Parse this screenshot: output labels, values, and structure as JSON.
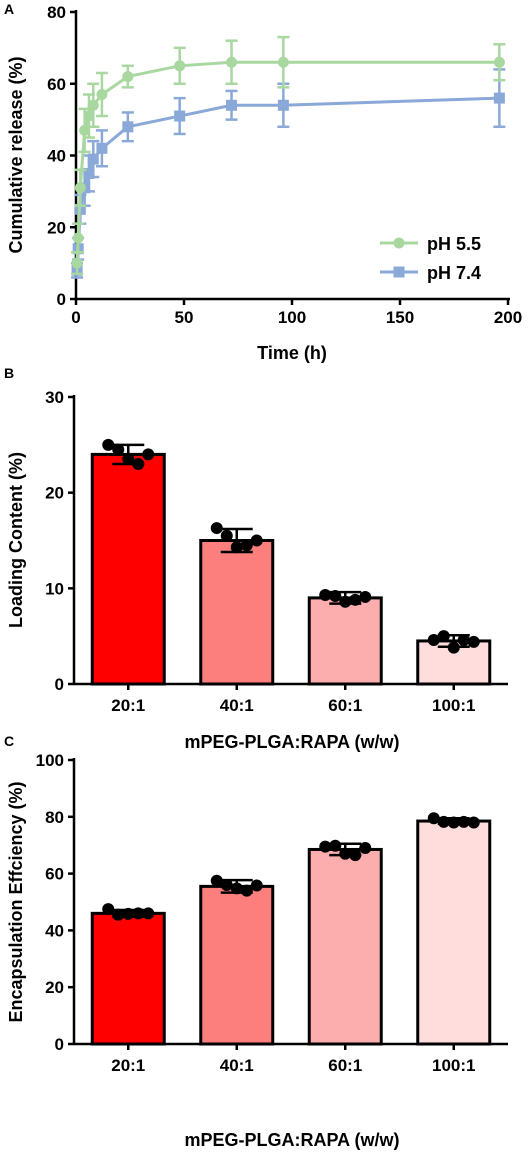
{
  "panels": {
    "a": {
      "letter": "A"
    },
    "b": {
      "letter": "B"
    },
    "c": {
      "letter": "C"
    }
  },
  "chart_data": [
    {
      "type": "line",
      "xlabel": "Time (h)",
      "ylabel": "Cumulative release (%)",
      "xlim": [
        0,
        200
      ],
      "ylim": [
        0,
        80
      ],
      "xticks": [
        "0",
        "50",
        "100",
        "150",
        "200"
      ],
      "yticks": [
        "0",
        "20",
        "40",
        "60",
        "80"
      ],
      "legend_position": "bottom-right",
      "series": [
        {
          "name": "pH 5.5",
          "color": "#a8d8a0",
          "marker": "circle",
          "x": [
            0.5,
            1,
            2,
            4,
            6,
            8,
            12,
            24,
            48,
            72,
            96,
            196
          ],
          "y": [
            10,
            17,
            31,
            47,
            51,
            54,
            57,
            62,
            65,
            66,
            66,
            66
          ],
          "err": [
            3,
            4,
            5,
            6,
            6,
            6,
            6,
            3,
            5,
            6,
            7,
            5
          ]
        },
        {
          "name": "pH 7.4",
          "color": "#8aa8d8",
          "marker": "square",
          "x": [
            0.5,
            1,
            2,
            4,
            6,
            8,
            12,
            24,
            48,
            72,
            96,
            196
          ],
          "y": [
            8,
            14,
            25,
            31,
            35,
            39,
            42,
            48,
            51,
            54,
            54,
            56
          ],
          "err": [
            2,
            3,
            4,
            5,
            5,
            5,
            5,
            4,
            5,
            4,
            6,
            8
          ]
        }
      ]
    },
    {
      "type": "bar",
      "xlabel": "mPEG-PLGA:RAPA (w/w)",
      "ylabel": "Loading Content (%)",
      "ylim": [
        0,
        30
      ],
      "yticks": [
        "0",
        "10",
        "20",
        "30"
      ],
      "categories": [
        "20:1",
        "40:1",
        "60:1",
        "100:1"
      ],
      "values": [
        24,
        15,
        9,
        4.5
      ],
      "err": [
        1,
        1.2,
        0.6,
        0.6
      ],
      "colors": [
        "#ff0000",
        "#fc7f7e",
        "#fcaeae",
        "#ffdddd"
      ],
      "points": [
        [
          25,
          24.5,
          23.5,
          23,
          24
        ],
        [
          16.3,
          15.5,
          14.3,
          14.5,
          15
        ],
        [
          9.3,
          9.2,
          8.6,
          8.8,
          9.1
        ],
        [
          4.6,
          5.0,
          3.8,
          4.6,
          4.4
        ]
      ]
    },
    {
      "type": "bar",
      "xlabel": "mPEG-PLGA:RAPA (w/w)",
      "ylabel": "Encapsulation Effciency (%)",
      "ylim": [
        0,
        100
      ],
      "yticks": [
        "0",
        "20",
        "40",
        "60",
        "80",
        "100"
      ],
      "categories": [
        "20:1",
        "40:1",
        "60:1",
        "100:1"
      ],
      "values": [
        46,
        55.5,
        68.5,
        78.5
      ],
      "err": [
        1.2,
        2.2,
        2,
        1
      ],
      "colors": [
        "#ff0000",
        "#fc7f7e",
        "#fcaeae",
        "#ffdddd"
      ],
      "points": [
        [
          47.5,
          45.5,
          45.8,
          46,
          46
        ],
        [
          57.5,
          56,
          54.8,
          54,
          55.8
        ],
        [
          69.5,
          69.8,
          67,
          66.5,
          69
        ],
        [
          79.5,
          78.2,
          78,
          78.2,
          78
        ]
      ]
    }
  ]
}
